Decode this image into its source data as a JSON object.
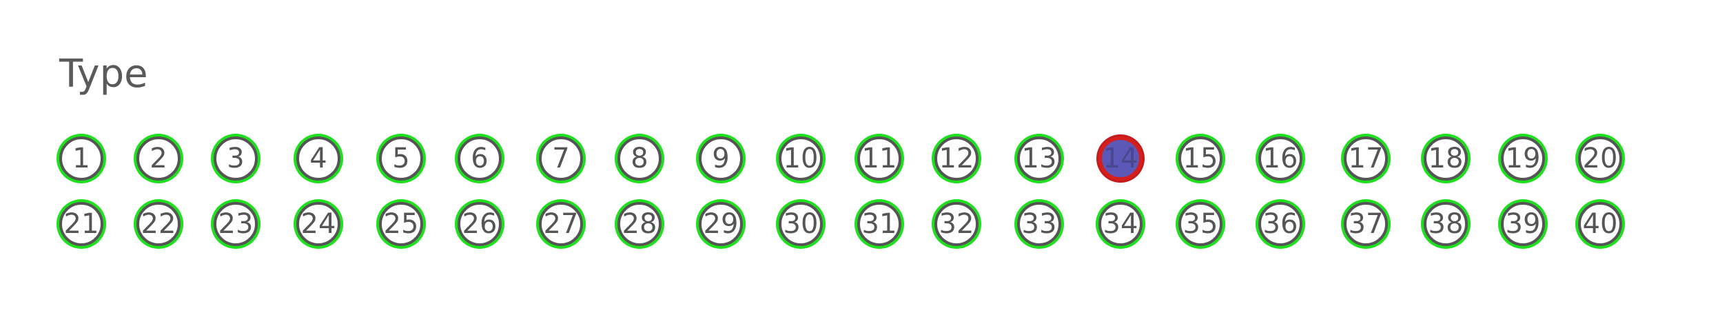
{
  "field": {
    "label": "Type"
  },
  "bubbles": [
    {
      "num": "1",
      "selected": false
    },
    {
      "num": "2",
      "selected": false
    },
    {
      "num": "3",
      "selected": false
    },
    {
      "num": "4",
      "selected": false
    },
    {
      "num": "5",
      "selected": false
    },
    {
      "num": "6",
      "selected": false
    },
    {
      "num": "7",
      "selected": false
    },
    {
      "num": "8",
      "selected": false
    },
    {
      "num": "9",
      "selected": false
    },
    {
      "num": "10",
      "selected": false
    },
    {
      "num": "11",
      "selected": false
    },
    {
      "num": "12",
      "selected": false
    },
    {
      "num": "13",
      "selected": false
    },
    {
      "num": "14",
      "selected": true
    },
    {
      "num": "15",
      "selected": false
    },
    {
      "num": "16",
      "selected": false
    },
    {
      "num": "17",
      "selected": false
    },
    {
      "num": "18",
      "selected": false
    },
    {
      "num": "19",
      "selected": false
    },
    {
      "num": "20",
      "selected": false
    },
    {
      "num": "21",
      "selected": false
    },
    {
      "num": "22",
      "selected": false
    },
    {
      "num": "23",
      "selected": false
    },
    {
      "num": "24",
      "selected": false
    },
    {
      "num": "25",
      "selected": false
    },
    {
      "num": "26",
      "selected": false
    },
    {
      "num": "27",
      "selected": false
    },
    {
      "num": "28",
      "selected": false
    },
    {
      "num": "29",
      "selected": false
    },
    {
      "num": "30",
      "selected": false
    },
    {
      "num": "31",
      "selected": false
    },
    {
      "num": "32",
      "selected": false
    },
    {
      "num": "33",
      "selected": false
    },
    {
      "num": "34",
      "selected": false
    },
    {
      "num": "35",
      "selected": false
    },
    {
      "num": "36",
      "selected": false
    },
    {
      "num": "37",
      "selected": false
    },
    {
      "num": "38",
      "selected": false
    },
    {
      "num": "39",
      "selected": false
    },
    {
      "num": "40",
      "selected": false
    }
  ],
  "colors": {
    "detected_ring": "#1ee01e",
    "selected_fill": "#5b58b8",
    "selected_ring": "#d41f1f"
  }
}
